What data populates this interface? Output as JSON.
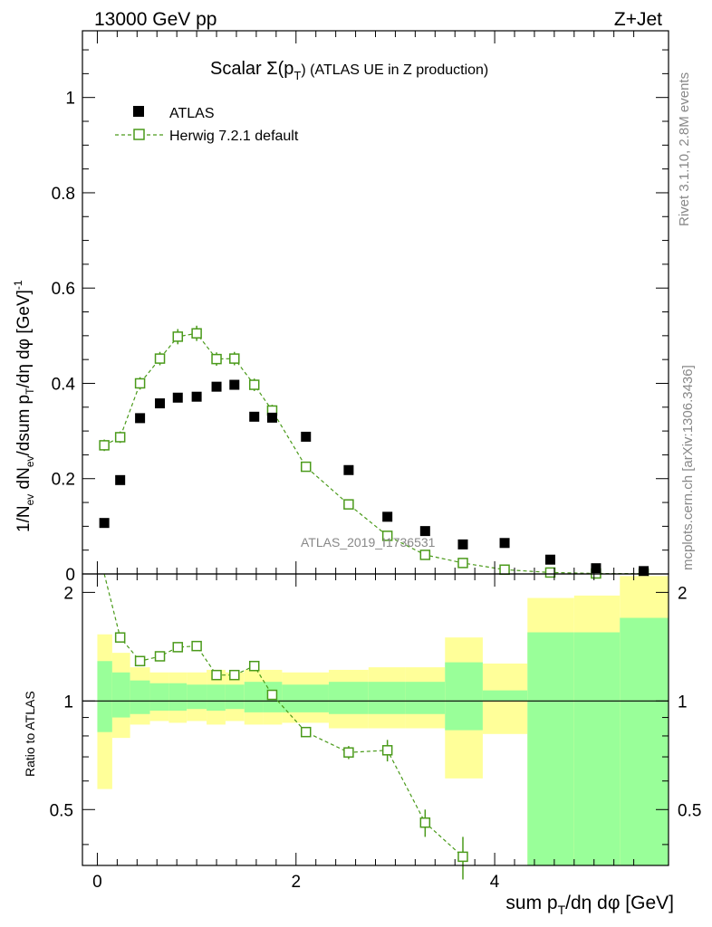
{
  "header": {
    "left": "13000 GeV pp",
    "right": "Z+Jet"
  },
  "side": {
    "rivet": "Rivet 3.1.10,  2.8M events",
    "mcplots": "mcplots.cern.ch [arXiv:1306.3436]"
  },
  "watermark": "ATLAS_2019_I1736531",
  "colors": {
    "mc": "#4a9a1a",
    "green_band": "#99ff99",
    "yellow_band": "#ffff99",
    "data": "#000000"
  },
  "chart_data": [
    {
      "type": "scatter",
      "title_prefix": "Scalar Σ(p",
      "title_sub": "T",
      "title_suffix": ") (ATLAS UE in Z production)",
      "ylabel": "1/N_ev dN_ev/dsum p_T/dη dφ [GeV]^-1",
      "ylabel_parts": [
        "1/N",
        "ev",
        " dN",
        "ev",
        "/dsum p",
        "T",
        "/dη dφ  [GeV]",
        "-1"
      ],
      "xlim": [
        -0.15,
        5.75
      ],
      "ylim": [
        0,
        1.14
      ],
      "yticks": [
        0,
        0.2,
        0.4,
        0.6,
        0.8,
        1
      ],
      "ytick_labels": [
        "0",
        "0.2",
        "0.4",
        "0.6",
        "0.8",
        "1"
      ],
      "legend": {
        "position": "top-left",
        "data_label": "ATLAS",
        "mc_label": "Herwig 7.2.1 default"
      },
      "series": [
        {
          "name": "ATLAS",
          "x": [
            0.07,
            0.23,
            0.43,
            0.63,
            0.81,
            1.0,
            1.2,
            1.38,
            1.58,
            1.76,
            2.1,
            2.53,
            2.92,
            3.3,
            3.68,
            4.1,
            4.56,
            5.02,
            5.5
          ],
          "y": [
            0.107,
            0.197,
            0.327,
            0.358,
            0.37,
            0.372,
            0.393,
            0.397,
            0.33,
            0.328,
            0.288,
            0.218,
            0.12,
            0.09,
            0.062,
            0.065,
            0.03,
            0.012,
            0.006
          ]
        },
        {
          "name": "Herwig 7.2.1 default",
          "x": [
            0.07,
            0.23,
            0.43,
            0.63,
            0.81,
            1.0,
            1.2,
            1.38,
            1.58,
            1.76,
            2.1,
            2.53,
            2.92,
            3.3,
            3.68,
            4.1,
            4.56,
            5.02,
            5.5
          ],
          "y": [
            0.27,
            0.287,
            0.4,
            0.452,
            0.498,
            0.505,
            0.451,
            0.452,
            0.397,
            0.343,
            0.225,
            0.146,
            0.08,
            0.04,
            0.023,
            0.009,
            0.003,
            0.001,
            0.0005
          ],
          "err": [
            0.012,
            0.012,
            0.013,
            0.014,
            0.016,
            0.016,
            0.014,
            0.014,
            0.013,
            0.012,
            0.008,
            0.006,
            0.006,
            0.004,
            0.004,
            0.002,
            0.001,
            0.001,
            0.0005
          ]
        }
      ]
    },
    {
      "type": "line",
      "ylabel": "Ratio to ATLAS",
      "xlabel_parts": [
        "sum p",
        "T",
        "/dη dφ [GeV]"
      ],
      "xlim": [
        -0.15,
        5.75
      ],
      "ylim": [
        0.35,
        2.25
      ],
      "yticks": [
        0.5,
        1,
        2
      ],
      "ytick_labels": [
        "0.5",
        "1",
        "2"
      ],
      "xticks": [
        0,
        2,
        4
      ],
      "xtick_labels": [
        "0",
        "2",
        "4"
      ],
      "bins": [
        [
          0.0,
          0.15
        ],
        [
          0.15,
          0.33
        ],
        [
          0.33,
          0.53
        ],
        [
          0.53,
          0.72
        ],
        [
          0.72,
          0.9
        ],
        [
          0.9,
          1.1
        ],
        [
          1.1,
          1.29
        ],
        [
          1.29,
          1.48
        ],
        [
          1.48,
          1.67
        ],
        [
          1.67,
          1.86
        ],
        [
          1.86,
          2.33
        ],
        [
          2.33,
          2.73
        ],
        [
          2.73,
          3.1
        ],
        [
          3.1,
          3.5
        ],
        [
          3.5,
          3.88
        ],
        [
          3.88,
          4.33
        ],
        [
          4.33,
          4.8
        ],
        [
          4.8,
          5.26
        ],
        [
          5.26,
          5.75
        ]
      ],
      "green_band": {
        "low": [
          0.82,
          0.9,
          0.92,
          0.94,
          0.94,
          0.95,
          0.94,
          0.95,
          0.93,
          0.93,
          0.93,
          0.92,
          0.92,
          0.92,
          0.83,
          1.0,
          0.05,
          0.05,
          0.05
        ],
        "high": [
          1.29,
          1.2,
          1.14,
          1.12,
          1.12,
          1.11,
          1.11,
          1.11,
          1.13,
          1.13,
          1.11,
          1.13,
          1.13,
          1.13,
          1.28,
          1.07,
          1.55,
          1.55,
          1.7
        ]
      },
      "yellow_band": {
        "low": [
          0.57,
          0.79,
          0.86,
          0.88,
          0.87,
          0.88,
          0.86,
          0.88,
          0.86,
          0.86,
          0.87,
          0.84,
          0.84,
          0.84,
          0.61,
          0.81,
          0.05,
          0.05,
          0.05
        ],
        "high": [
          1.53,
          1.36,
          1.24,
          1.2,
          1.2,
          1.2,
          1.22,
          1.2,
          1.22,
          1.22,
          1.2,
          1.22,
          1.24,
          1.24,
          1.5,
          1.27,
          1.93,
          1.96,
          2.22
        ]
      },
      "ratio_series": {
        "name": "Herwig 7.2.1 default",
        "x": [
          0.23,
          0.43,
          0.63,
          0.81,
          1.0,
          1.2,
          1.38,
          1.58,
          1.76,
          2.1,
          2.53,
          2.92,
          3.3,
          3.68
        ],
        "y": [
          1.5,
          1.29,
          1.33,
          1.41,
          1.42,
          1.18,
          1.18,
          1.25,
          1.04,
          0.82,
          0.72,
          0.73,
          0.46,
          0.37
        ],
        "err": [
          0.04,
          0.04,
          0.03,
          0.03,
          0.03,
          0.03,
          0.03,
          0.04,
          0.03,
          0.02,
          0.03,
          0.05,
          0.04,
          0.05
        ],
        "offscale_start": {
          "x": 0.07,
          "y": 2.6
        }
      }
    }
  ]
}
